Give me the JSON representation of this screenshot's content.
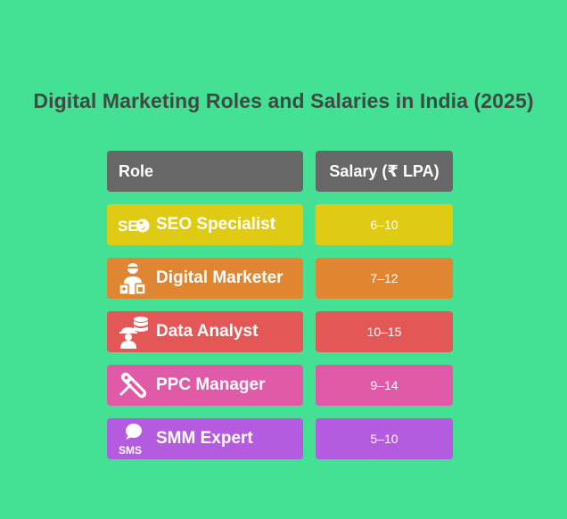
{
  "title": "Digital Marketing Roles and Salaries in India (2025)",
  "header": {
    "role": "Role",
    "salary": "Salary (₹ LPA)"
  },
  "rows": [
    {
      "role": "SEO Specialist",
      "salary": "6–10",
      "color": "#e0cb14",
      "icon": "seo-globe-icon"
    },
    {
      "role": "Digital Marketer",
      "salary": "7–12",
      "color": "#e08532",
      "icon": "marketer-person-icon"
    },
    {
      "role": "Data Analyst",
      "salary": "10–15",
      "color": "#e35757",
      "icon": "data-analyst-icon"
    },
    {
      "role": "PPC Manager",
      "salary": "9–14",
      "color": "#e05aa8",
      "icon": "ppc-tag-icon"
    },
    {
      "role": "SMM Expert",
      "salary": "5–10",
      "color": "#b55be0",
      "icon": "sms-bubble-icon"
    }
  ],
  "colors": {
    "background": "#44e094",
    "header": "#676767",
    "title": "#3f4a44"
  }
}
